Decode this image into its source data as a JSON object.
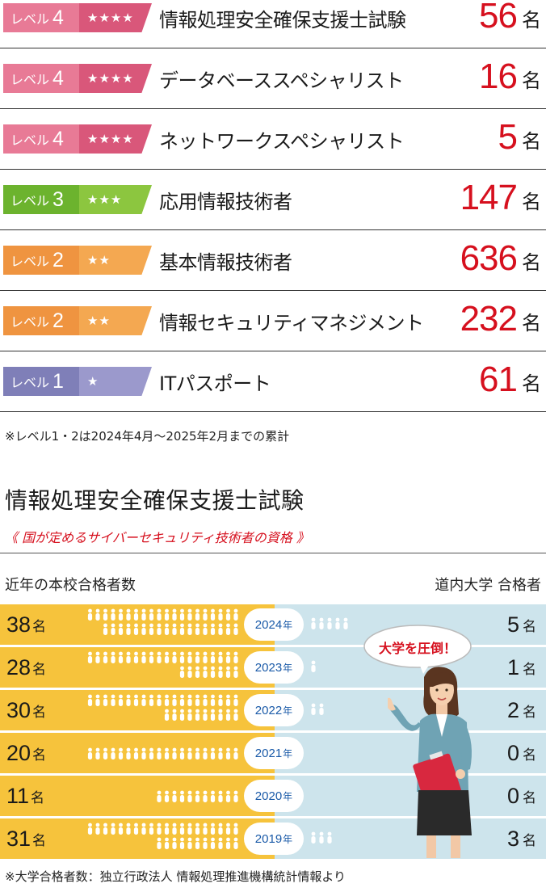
{
  "exams": [
    {
      "level_word": "レベル",
      "level_num": "4",
      "stars": "★★★★",
      "name": "情報処理安全確保支援士試験",
      "count": "56",
      "unit": "名",
      "badge_color": "#e87a96",
      "stars_color": "#d9577a"
    },
    {
      "level_word": "レベル",
      "level_num": "4",
      "stars": "★★★★",
      "name": "データベーススペシャリスト",
      "count": "16",
      "unit": "名",
      "badge_color": "#e87a96",
      "stars_color": "#d9577a"
    },
    {
      "level_word": "レベル",
      "level_num": "4",
      "stars": "★★★★",
      "name": "ネットワークスペシャリスト",
      "count": "5",
      "unit": "名",
      "badge_color": "#e87a96",
      "stars_color": "#d9577a"
    },
    {
      "level_word": "レベル",
      "level_num": "3",
      "stars": "★★★",
      "name": "応用情報技術者",
      "count": "147",
      "unit": "名",
      "badge_color": "#6cb32e",
      "stars_color": "#8cc63f"
    },
    {
      "level_word": "レベル",
      "level_num": "2",
      "stars": "★★",
      "name": "基本情報技術者",
      "count": "636",
      "unit": "名",
      "badge_color": "#ef9440",
      "stars_color": "#f4a851"
    },
    {
      "level_word": "レベル",
      "level_num": "2",
      "stars": "★★",
      "name": "情報セキュリティマネジメント",
      "count": "232",
      "unit": "名",
      "badge_color": "#ef9440",
      "stars_color": "#f4a851"
    },
    {
      "level_word": "レベル",
      "level_num": "1",
      "stars": "★",
      "name": "ITパスポート",
      "count": "61",
      "unit": "名",
      "badge_color": "#7f7fb8",
      "stars_color": "#9b99cc"
    }
  ],
  "note_top": "※レベル1・2は2024年4月～2025年2月までの累計",
  "section": {
    "title": "情報処理安全確保支援士試験",
    "subtitle": "《 国が定めるサイバーセキュリティ技術者の資格 》",
    "left_header": "近年の本校合格者数",
    "right_header": "道内大学 合格者",
    "bubble": "大学を圧倒！",
    "unit": "名",
    "year_unit": "年"
  },
  "chart_data": {
    "type": "bar",
    "title": "情報処理安全確保支援士試験",
    "categories": [
      "2024",
      "2023",
      "2022",
      "2021",
      "2020",
      "2019"
    ],
    "series": [
      {
        "name": "近年の本校合格者数",
        "values": [
          38,
          28,
          30,
          20,
          11,
          31
        ]
      },
      {
        "name": "道内大学 合格者",
        "values": [
          5,
          1,
          2,
          0,
          0,
          3
        ]
      }
    ],
    "xlabel": "",
    "ylabel": ""
  },
  "colors": {
    "red": "#d6101e",
    "yellow": "#f6c33c",
    "blue_bg": "#cde4ec",
    "year_blue": "#1a5aa8"
  },
  "note_bottom": "※大学合格者数：独立行政法人 情報処理推進機構統計情報より"
}
